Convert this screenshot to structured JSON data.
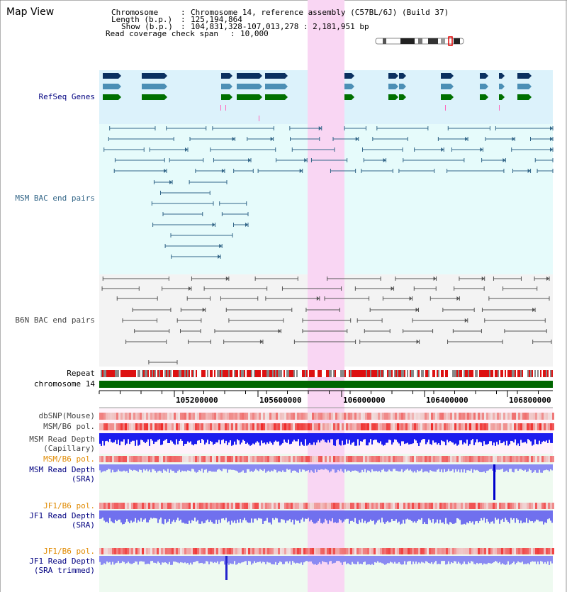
{
  "title": "Map View",
  "info": {
    "chromosome_key": "Chromosome",
    "chromosome_val": "Chromosome 14, reference assembly (C57BL/6J) (Build 37)",
    "length_key": "Length (b.p.)",
    "length_val": "125,194,864",
    "show_key": "Show (b.p.)",
    "show_val": "104,831,328-107,013,278 : 2,181,951 bp",
    "coverage_key": "Read coverage check span",
    "coverage_val": "10,000",
    "sep": ":"
  },
  "tracks": {
    "refseq": "RefSeq Genes",
    "msm_bac": "MSM BAC end pairs",
    "b6n_bac": "B6N BAC end pairs",
    "repeat": "Repeat",
    "chrom": "chromosome 14",
    "dbsnp": "dbSNP(Mouse)",
    "msm_b6_pol": "MSM/B6 pol.",
    "msm_depth_cap_1": "MSM Read Depth",
    "msm_depth_cap_2": "(Capillary)",
    "msm_b6_pol_sra": "MSM/B6 pol.",
    "msm_depth_sra_1": "MSM Read Depth",
    "msm_depth_sra_2": "(SRA)",
    "jf1_b6_pol": "JF1/B6 pol.",
    "jf1_depth_1": "JF1 Read Depth",
    "jf1_depth_2": "(SRA)",
    "jf1_b6_pol_trim": "JF1/B6 pol.",
    "jf1_depth_trim_1": "JF1 Read Depth",
    "jf1_depth_trim_2": "(SRA trimmed)"
  },
  "ruler": {
    "ticks": [
      "105200000",
      "105600000",
      "106000000",
      "106400000",
      "106800000"
    ]
  },
  "colors": {
    "navy": "#000080",
    "teal": "#336688",
    "gray": "#444444",
    "orange": "#e08a00",
    "highlight": "#f9d6f3"
  }
}
